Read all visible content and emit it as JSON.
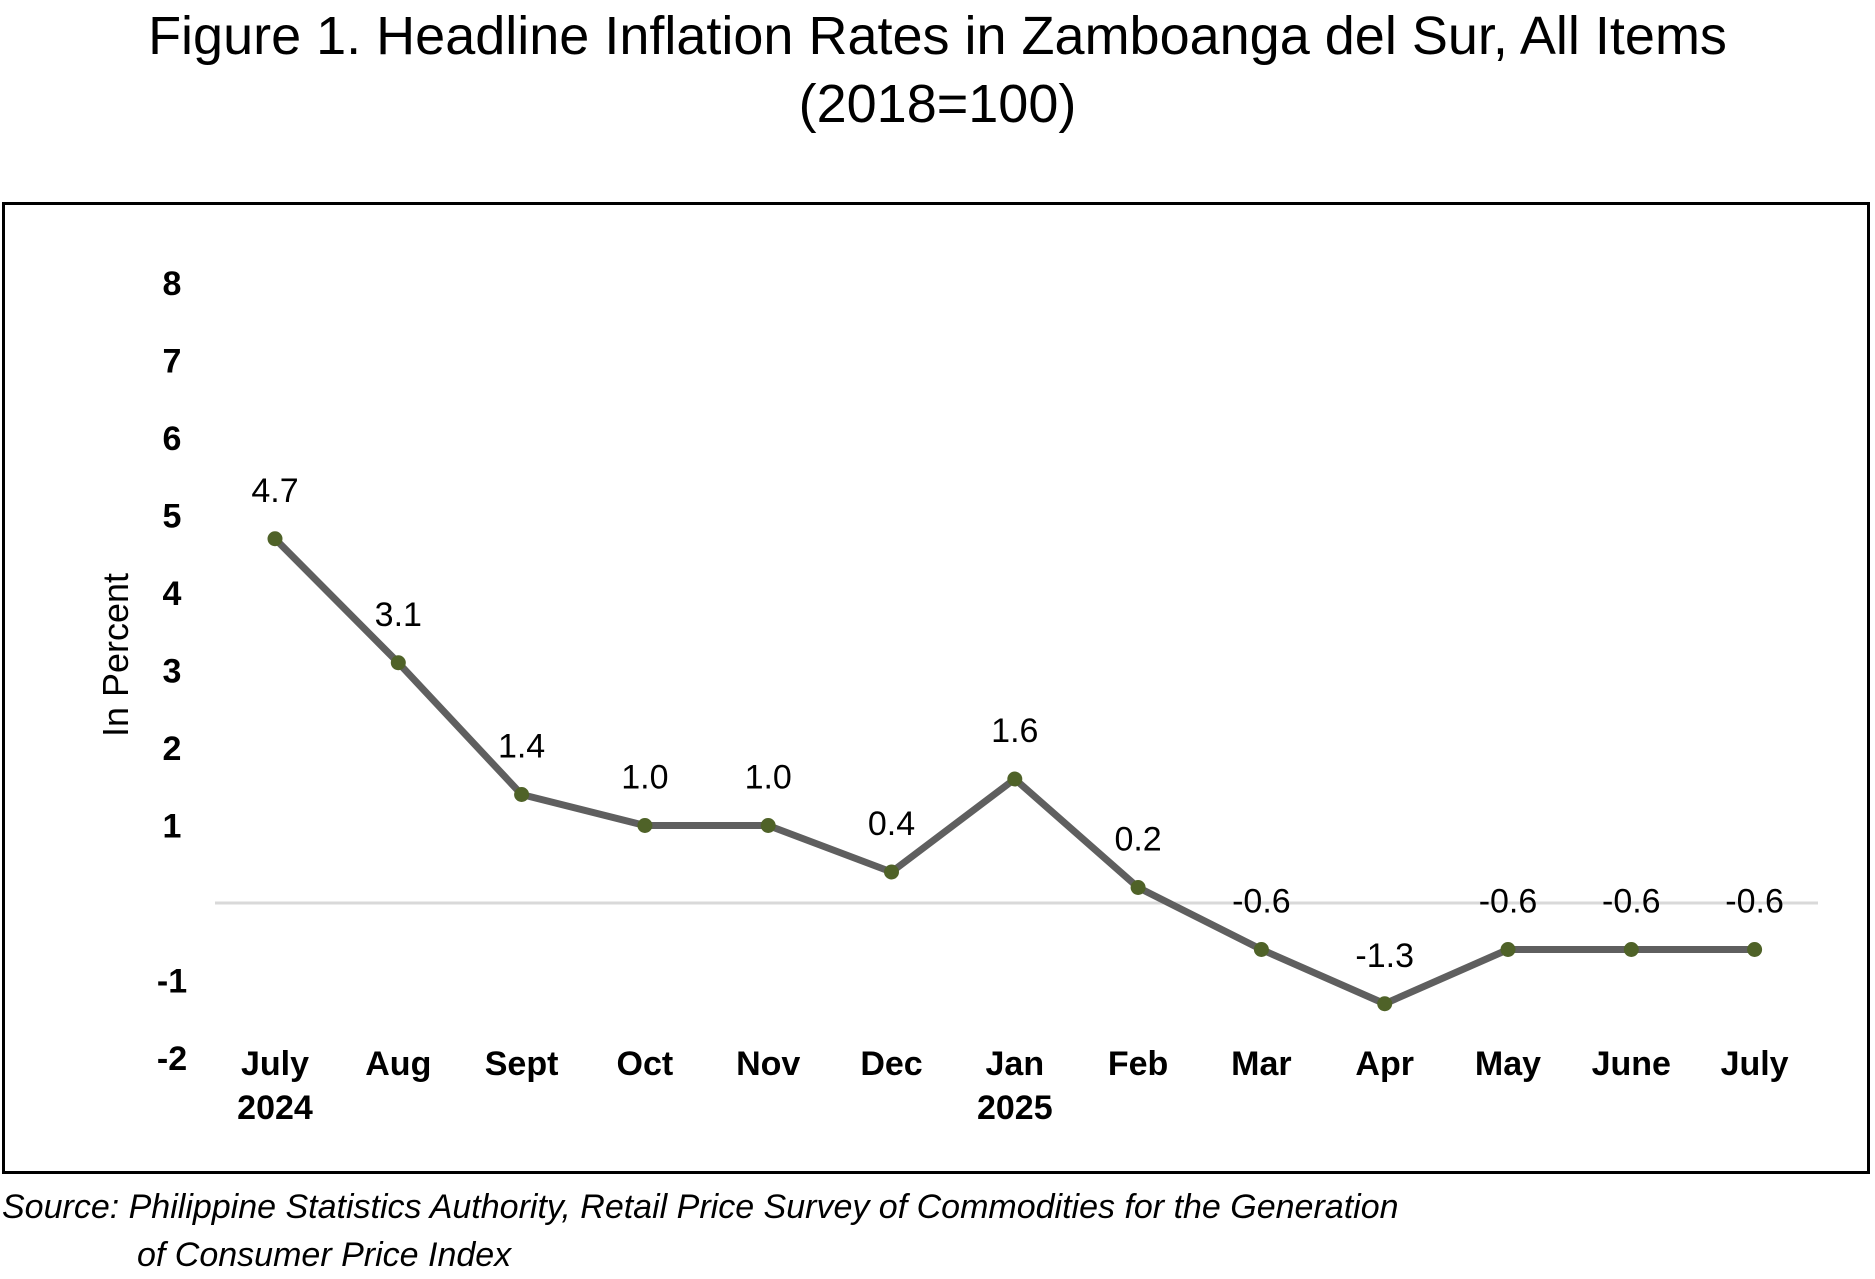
{
  "title": {
    "line1": "Figure 1. Headline Inflation Rates in Zamboanga del Sur, All Items",
    "line2": "(2018=100)"
  },
  "source": {
    "line1": "Source: Philippine Statistics Authority, Retail Price Survey of Commodities for the Generation",
    "line2": "of Consumer Price Index"
  },
  "chart_data": {
    "type": "line",
    "ylabel": "In Percent",
    "xlabel": "",
    "categories": [
      "July 2024",
      "Aug",
      "Sept",
      "Oct",
      "Nov",
      "Dec",
      "Jan 2025",
      "Feb",
      "Mar",
      "Apr",
      "May",
      "June",
      "July"
    ],
    "category_labels": [
      [
        "July",
        "2024"
      ],
      [
        "Aug"
      ],
      [
        "Sept"
      ],
      [
        "Oct"
      ],
      [
        "Nov"
      ],
      [
        "Dec"
      ],
      [
        "Jan",
        "2025"
      ],
      [
        "Feb"
      ],
      [
        "Mar"
      ],
      [
        "Apr"
      ],
      [
        "May"
      ],
      [
        "June"
      ],
      [
        "July"
      ]
    ],
    "series": [
      {
        "values": [
          4.7,
          3.1,
          1.4,
          1.0,
          1.0,
          0.4,
          1.6,
          0.2,
          -0.6,
          -1.3,
          -0.6,
          -0.6,
          -0.6
        ],
        "data_labels": [
          "4.7",
          "3.1",
          "1.4",
          "1.0",
          "1.0",
          "0.4",
          "1.6",
          "0.2",
          "-0.6",
          "-1.3",
          "-0.6",
          "-0.6",
          "-0.6"
        ],
        "line_color": "#5f5f5f",
        "marker_color": "#4f6228"
      }
    ],
    "y_tick_labels": [
      "8",
      "7",
      "6",
      "5",
      "4",
      "3",
      "2",
      "1",
      "-1",
      "-2"
    ],
    "ylim": [
      -2,
      8
    ],
    "grid": false,
    "zero_line_color": "#d9d9d9"
  }
}
